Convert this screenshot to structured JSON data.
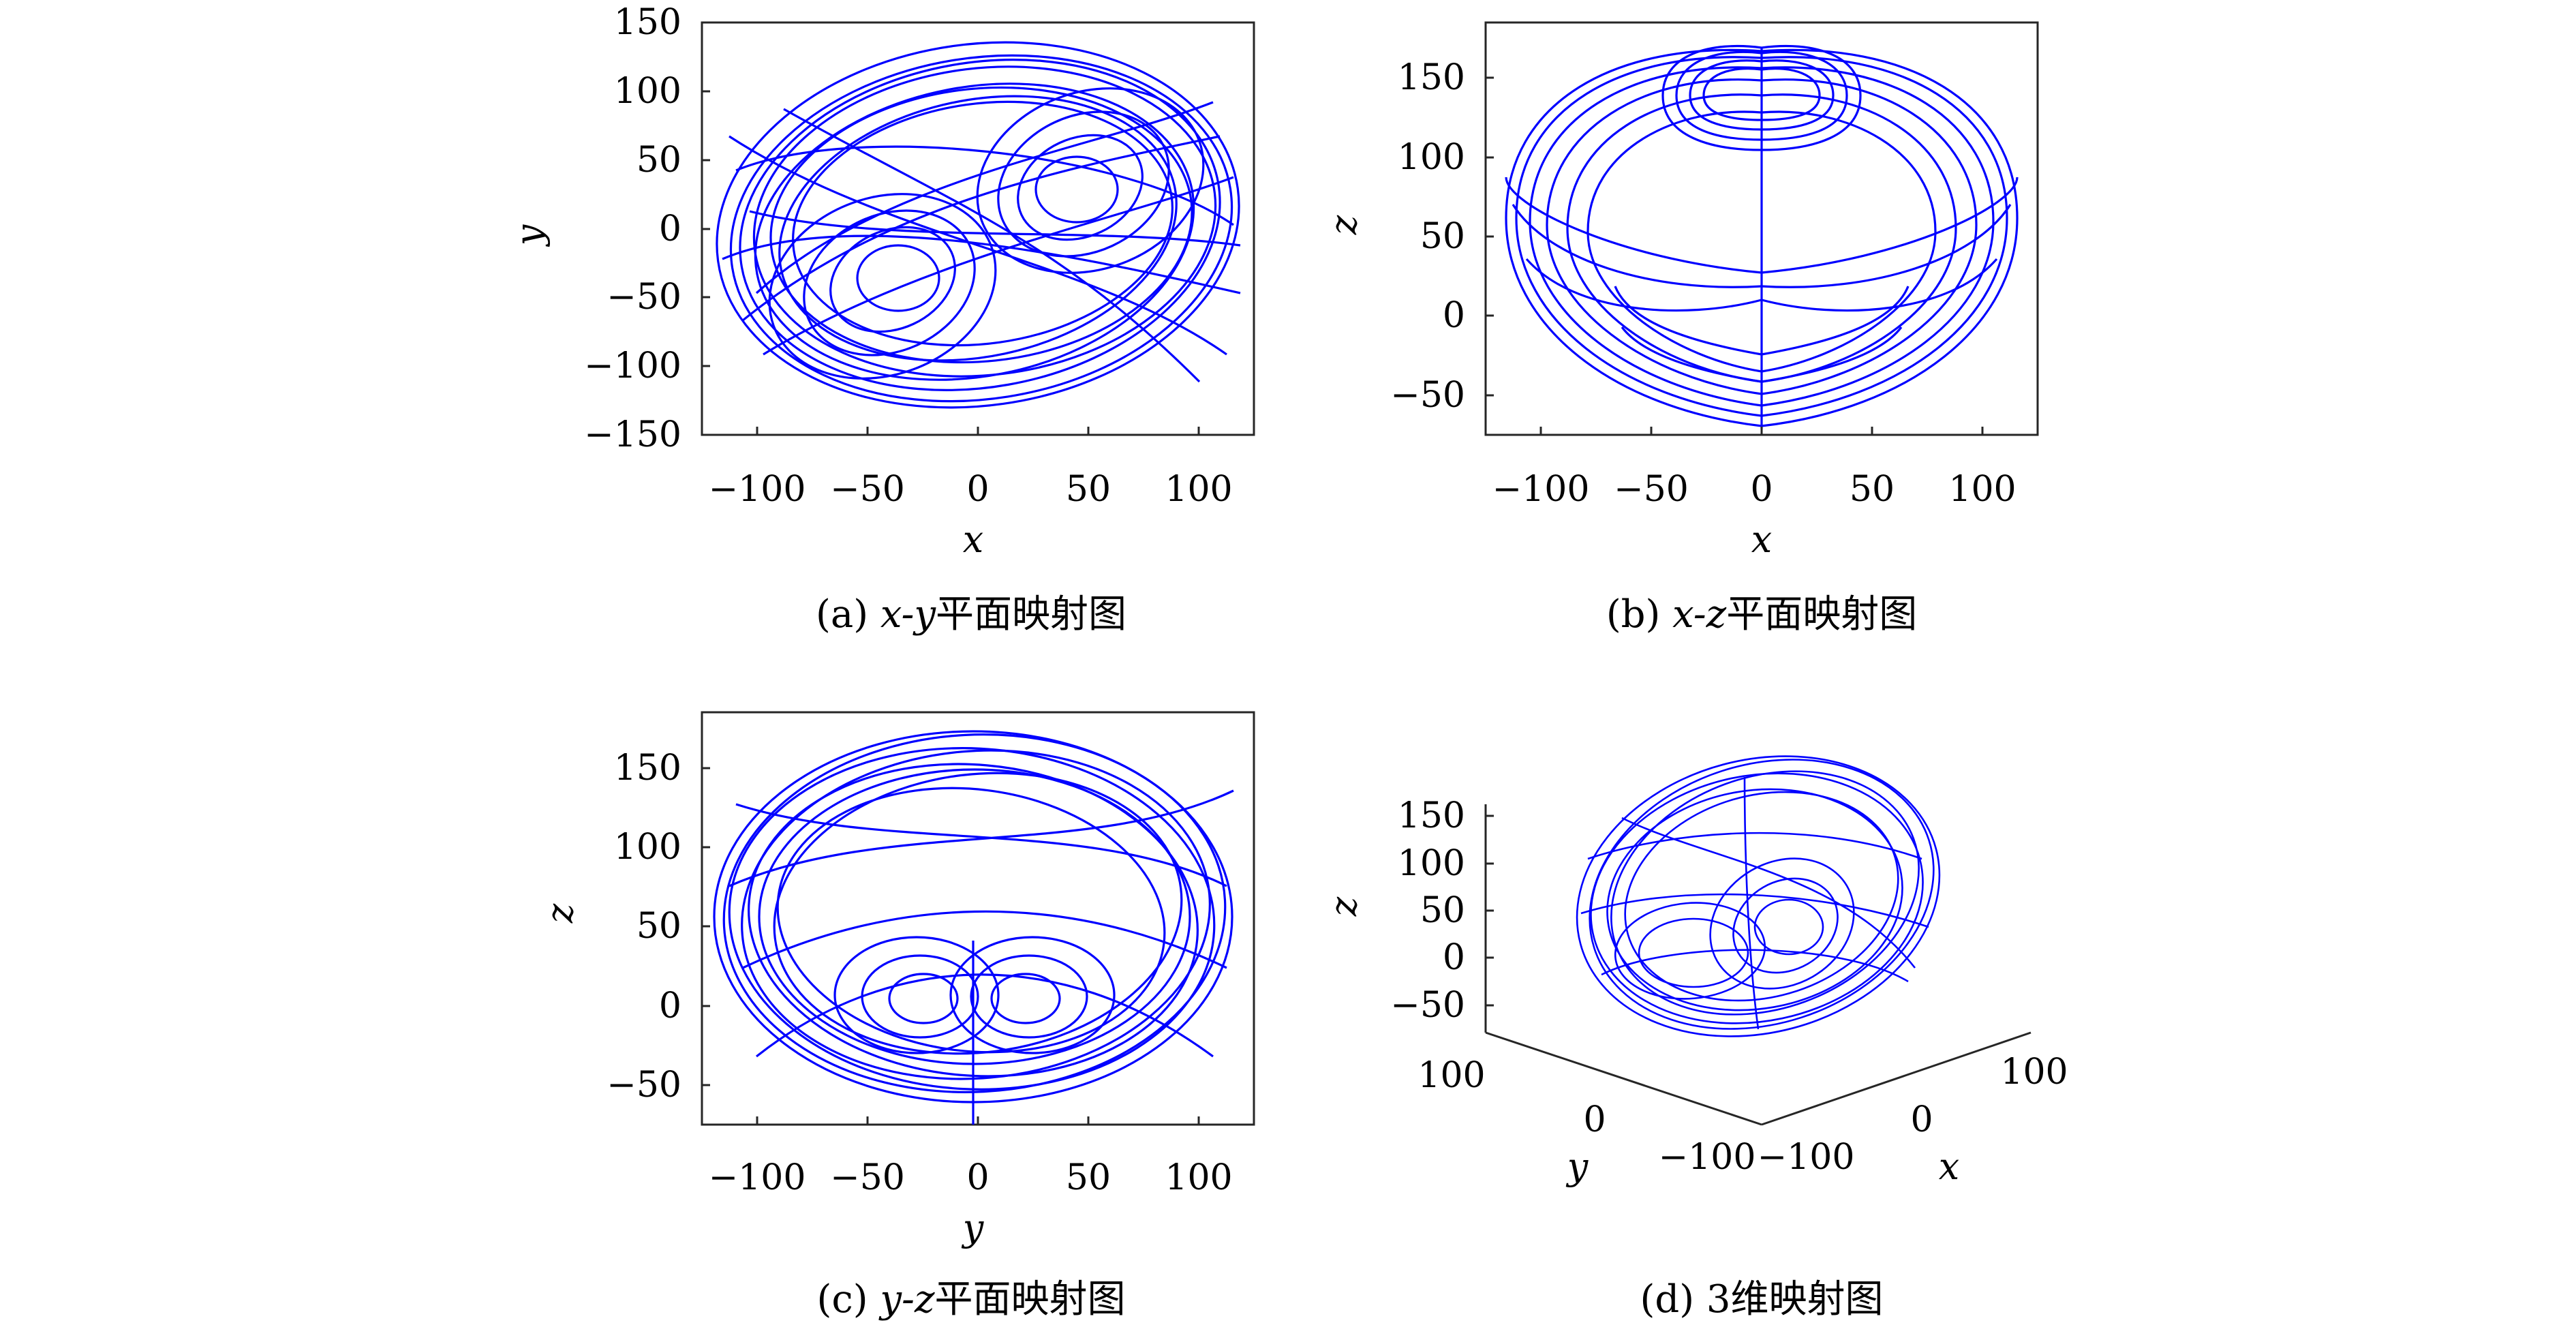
{
  "colors": {
    "trajectory": "#0000ff",
    "axes": "#262626",
    "background": "#ffffff"
  },
  "chart_data": [
    {
      "id": "a",
      "type": "line",
      "subplot": "a",
      "caption_prefix": "(a) ",
      "caption_math": "x-y",
      "caption_suffix": "平面映射图",
      "xlabel": "x",
      "ylabel": "y",
      "xlim": [
        -125,
        125
      ],
      "ylim": [
        -150,
        150
      ],
      "xticks": [
        -100,
        -50,
        0,
        50,
        100
      ],
      "xtick_labels": [
        "−100",
        "−50",
        "0",
        "50",
        "100"
      ],
      "yticks": [
        -150,
        -100,
        -50,
        0,
        50,
        100,
        150
      ],
      "ytick_labels": [
        "−150",
        "−100",
        "−50",
        "0",
        "50",
        "100",
        "150"
      ],
      "grid": false,
      "series": [
        {
          "values_description_free": true,
          "x": [
            0,
            30,
            55,
            80,
            100,
            112,
            115,
            105,
            80,
            45,
            5,
            -40,
            -80,
            -105,
            -118,
            -115,
            -100,
            -70,
            -35,
            0
          ],
          "y": [
            0,
            60,
            95,
            110,
            105,
            80,
            30,
            -20,
            -60,
            -95,
            -115,
            -120,
            -105,
            -75,
            -30,
            20,
            65,
            95,
            110,
            120
          ]
        }
      ]
    },
    {
      "id": "b",
      "type": "line",
      "subplot": "b",
      "caption_prefix": "(b) ",
      "caption_math": "x-z",
      "caption_suffix": "平面映射图",
      "xlabel": "x",
      "ylabel": "z",
      "xlim": [
        -125,
        125
      ],
      "ylim": [
        -80,
        180
      ],
      "xticks": [
        -100,
        -50,
        0,
        50,
        100
      ],
      "xtick_labels": [
        "−100",
        "−50",
        "0",
        "50",
        "100"
      ],
      "yticks": [
        -50,
        0,
        50,
        100,
        150
      ],
      "ytick_labels": [
        "−50",
        "0",
        "50",
        "100",
        "150"
      ],
      "grid": false,
      "series": [
        {
          "x": [
            0,
            40,
            80,
            105,
            115,
            110,
            90,
            60,
            25,
            0,
            -25,
            -60,
            -90,
            -110,
            -115,
            -105,
            -80,
            -40,
            0
          ],
          "y": [
            165,
            160,
            140,
            110,
            70,
            30,
            -10,
            -45,
            -65,
            -70,
            -65,
            -45,
            -10,
            30,
            70,
            110,
            140,
            160,
            165
          ]
        }
      ]
    },
    {
      "id": "c",
      "type": "line",
      "subplot": "c",
      "caption_prefix": "(c) ",
      "caption_math": "y-z",
      "caption_suffix": "平面映射图",
      "xlabel": "y",
      "ylabel": "z",
      "xlim": [
        -125,
        125
      ],
      "ylim": [
        -80,
        180
      ],
      "xticks": [
        -100,
        -50,
        0,
        50,
        100
      ],
      "xtick_labels": [
        "−100",
        "−50",
        "0",
        "50",
        "100"
      ],
      "yticks": [
        -50,
        0,
        50,
        100,
        150
      ],
      "ytick_labels": [
        "−50",
        "0",
        "50",
        "100",
        "150"
      ],
      "grid": false,
      "series": [
        {
          "x": [
            0,
            50,
            90,
            110,
            115,
            105,
            80,
            40,
            0,
            -40,
            -80,
            -105,
            -115,
            -110,
            -90,
            -50,
            0
          ],
          "y": [
            165,
            155,
            130,
            95,
            50,
            5,
            -40,
            -65,
            -70,
            -65,
            -40,
            5,
            50,
            95,
            130,
            155,
            165
          ]
        }
      ]
    },
    {
      "id": "d",
      "type": "line",
      "subplot": "d",
      "caption_prefix": "(d) ",
      "caption_math": "",
      "caption_suffix": "3维映射图",
      "xlabel": "x",
      "ylabel": "y",
      "zlabel": "z",
      "zticks": [
        -50,
        0,
        50,
        100,
        150
      ],
      "ztick_labels": [
        "−50",
        "0",
        "50",
        "100",
        "150"
      ],
      "xticks": [
        -100,
        0,
        100
      ],
      "xtick_labels": [
        "−100",
        "0",
        "100"
      ],
      "yticks": [
        100,
        0,
        -100
      ],
      "ytick_labels": [
        "100",
        "0",
        "−100"
      ],
      "grid": false
    }
  ]
}
